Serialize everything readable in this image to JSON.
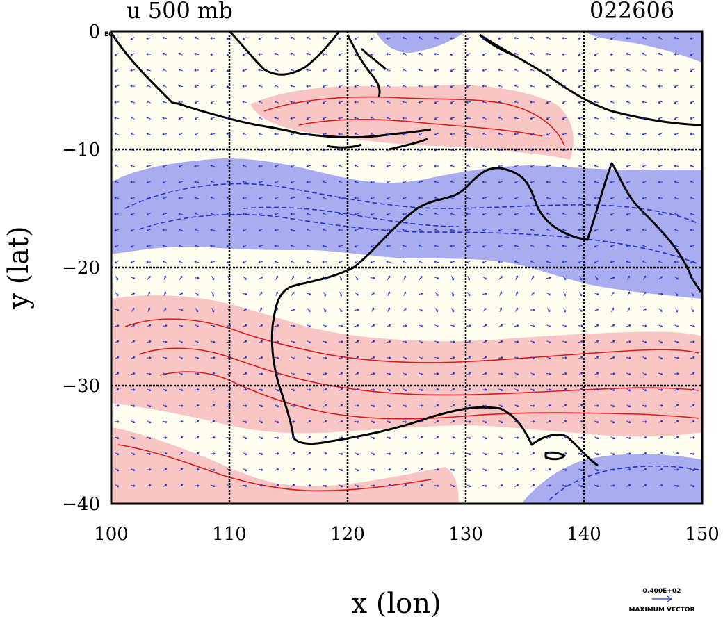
{
  "title_left": "u 500 mb",
  "title_right": "022606",
  "corner_mark": "E0",
  "axes": {
    "xlabel": "x (lon)",
    "ylabel": "y (lat)",
    "xlim": [
      100,
      150
    ],
    "ylim": [
      -40,
      0
    ],
    "xticks": [
      100,
      110,
      120,
      130,
      140,
      150
    ],
    "yticks": [
      0,
      -10,
      -20,
      -30,
      -40
    ],
    "grid": true
  },
  "vector_legend": {
    "value": "0.400E+02",
    "label": "MAXIMUM VECTOR"
  },
  "colors": {
    "positive_fill": "#f9c6c6",
    "positive_contour": "#dd1a1a",
    "negative_fill": "#a9adf0",
    "negative_contour": "#1f32cc",
    "background_fill": "#fffdf0",
    "coastline": "#000000",
    "vectors": "#2233cc"
  }
}
